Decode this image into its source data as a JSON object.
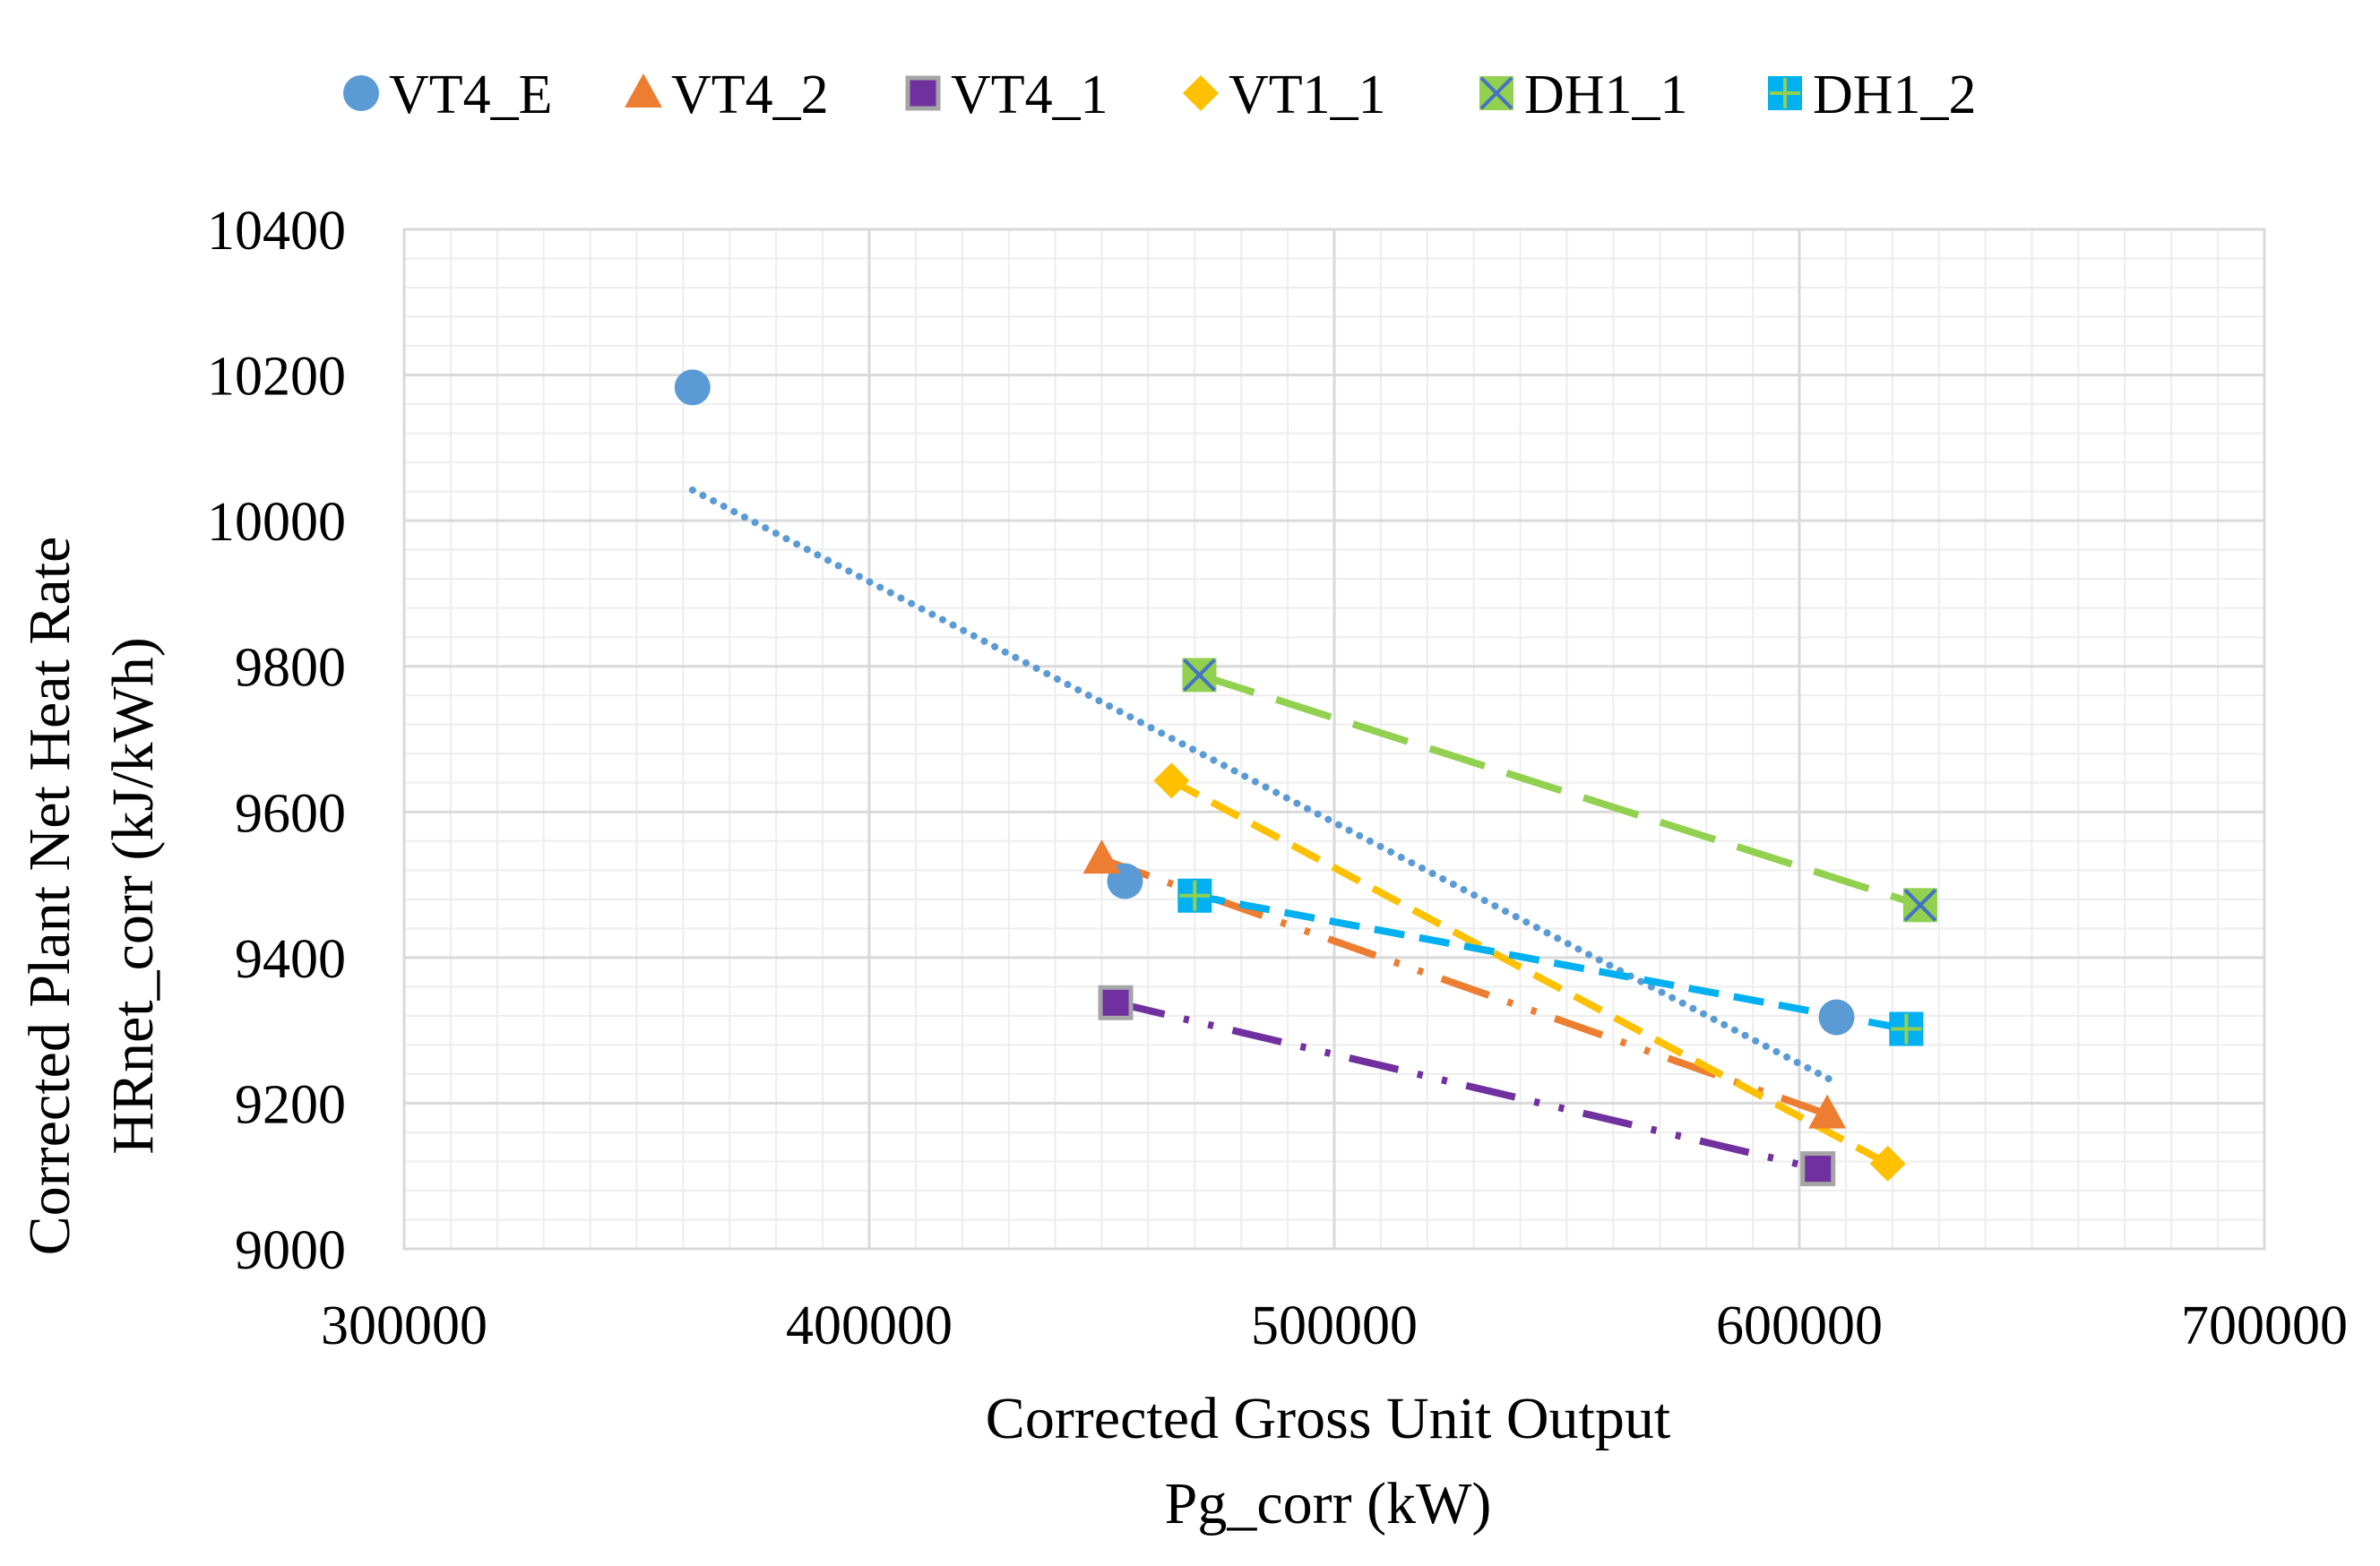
{
  "chart_data": {
    "type": "scatter",
    "title": "",
    "xlabel": [
      "Corrected Gross Unit Output",
      "Pg_corr (kW)"
    ],
    "ylabel": [
      "Corrected Plant Net Heat Rate",
      "HRnet_corr (kJ/kWh)"
    ],
    "xlim": [
      300000,
      700000
    ],
    "ylim": [
      9000,
      10400
    ],
    "x_major_step": 100000,
    "x_minor_step": 10000,
    "y_major_step": 200,
    "y_minor_step": 40,
    "x_ticks": [
      "300000",
      "400000",
      "500000",
      "600000",
      "700000"
    ],
    "y_ticks": [
      "9000",
      "9200",
      "9400",
      "9600",
      "9800",
      "10000",
      "10200",
      "10400"
    ],
    "grid": true,
    "legend_position": "top",
    "series": [
      {
        "name": "VT4_E",
        "marker": "circle",
        "color": "#5b9bd5",
        "trendline": "dotted",
        "trend_start": [
          362000,
          10042
        ],
        "trend_end": [
          608000,
          9228
        ],
        "points": [
          [
            362000,
            10183
          ],
          [
            455000,
            9505
          ],
          [
            608000,
            9318
          ]
        ]
      },
      {
        "name": "VT4_2",
        "marker": "triangle",
        "color": "#ed7d31",
        "trendline": "long-dash-dot-dot",
        "trend_start": [
          450000,
          9535
        ],
        "trend_end": [
          606000,
          9185
        ],
        "points": [
          [
            450000,
            9535
          ],
          [
            606000,
            9185
          ]
        ]
      },
      {
        "name": "VT4_1",
        "marker": "square",
        "color": "#7030a0",
        "border": "#a5a5a5",
        "trendline": "long-dash-dot-dot",
        "trend_start": [
          453000,
          9338
        ],
        "trend_end": [
          604000,
          9110
        ],
        "points": [
          [
            453000,
            9338
          ],
          [
            604000,
            9110
          ]
        ]
      },
      {
        "name": "VT1_1",
        "marker": "diamond",
        "color": "#ffc000",
        "trendline": "dashed",
        "trend_start": [
          465000,
          9643
        ],
        "trend_end": [
          619000,
          9117
        ],
        "points": [
          [
            465000,
            9643
          ],
          [
            619000,
            9117
          ]
        ]
      },
      {
        "name": "DH1_1",
        "marker": "square-x",
        "color": "#92d050",
        "cross": "#4472c4",
        "trendline": "long-dashed",
        "trend_start": [
          471000,
          9788
        ],
        "trend_end": [
          626000,
          9472
        ],
        "points": [
          [
            471000,
            9788
          ],
          [
            626000,
            9472
          ]
        ]
      },
      {
        "name": "DH1_2",
        "marker": "square-plus",
        "color": "#00b0f0",
        "cross": "#92d050",
        "trendline": "dashed",
        "trend_start": [
          470000,
          9485
        ],
        "trend_end": [
          623000,
          9302
        ],
        "points": [
          [
            470000,
            9485
          ],
          [
            623000,
            9302
          ]
        ]
      }
    ]
  }
}
